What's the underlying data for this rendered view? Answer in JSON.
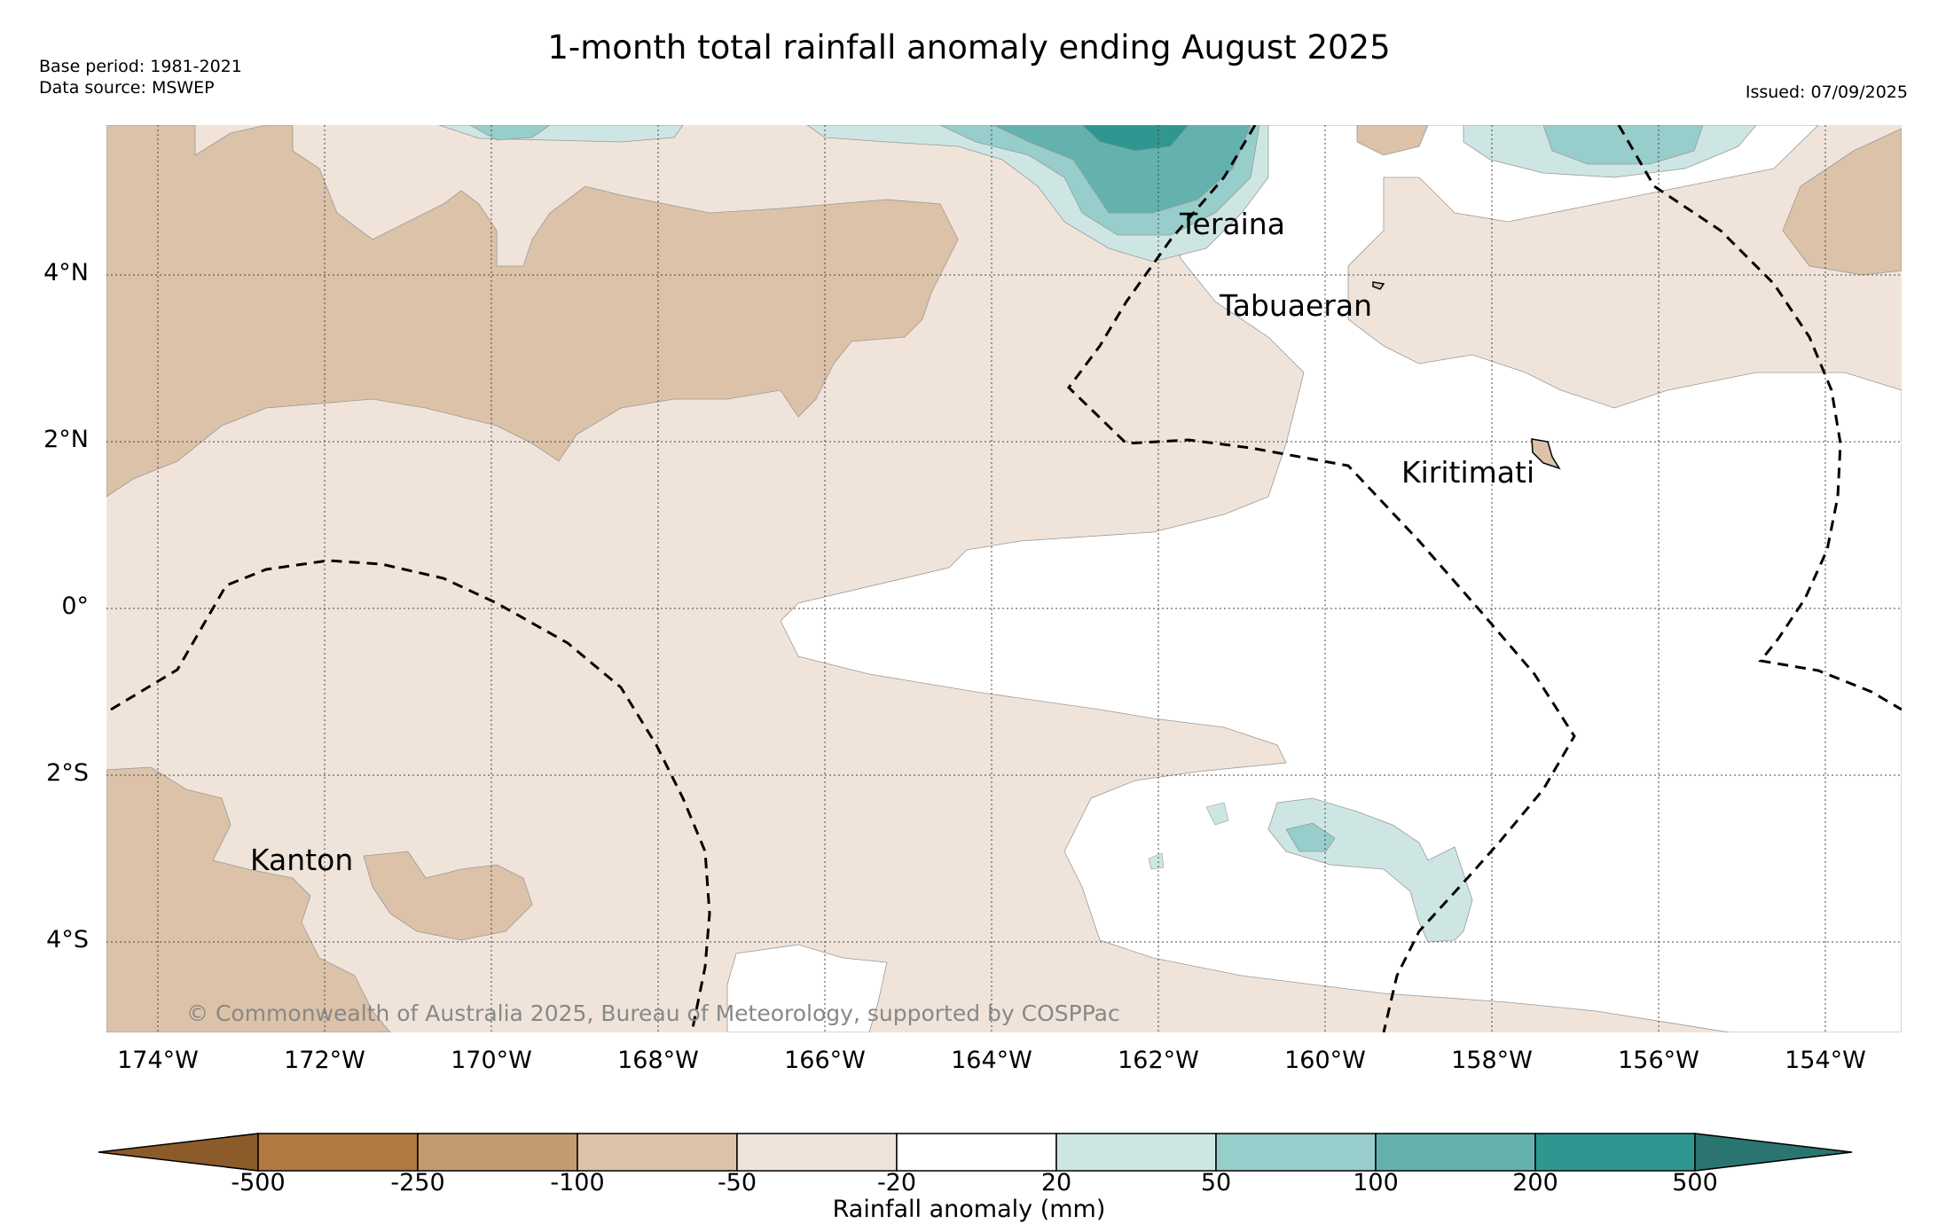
{
  "title": "1-month total rainfall anomaly ending August 2025",
  "meta": {
    "base_period": "Base period: 1981-2021",
    "data_source": "Data source: MSWEP",
    "issued": "Issued: 07/09/2025"
  },
  "axes": {
    "lat_labels": [
      "4°N",
      "2°N",
      "0°",
      "2°S",
      "4°S"
    ],
    "lon_labels": [
      "174°W",
      "172°W",
      "170°W",
      "168°W",
      "166°W",
      "164°W",
      "162°W",
      "160°W",
      "158°W",
      "156°W",
      "154°W"
    ]
  },
  "places": [
    {
      "name": "Teraina"
    },
    {
      "name": "Tabuaeran"
    },
    {
      "name": "Kiritimati"
    },
    {
      "name": "Kanton"
    }
  ],
  "copyright": "© Commonwealth of Australia 2025, Bureau of Meteorology, supported by COSPPac",
  "colorbar": {
    "title": "Rainfall anomaly (mm)",
    "ticks": [
      "-500",
      "-250",
      "-100",
      "-50",
      "-20",
      "20",
      "50",
      "100",
      "200",
      "500"
    ],
    "colors": [
      "#8c5b2a",
      "#b07a40",
      "#c49a70",
      "#dcc2a8",
      "#f0e4da",
      "#ffffff",
      "#cde6e4",
      "#97cdca",
      "#63b2ae",
      "#2f9790",
      "#2a7570"
    ]
  },
  "colors": {
    "dry_strong": "#dcc2a8",
    "dry_light": "#f0e4da",
    "wet_light": "#cde6e4",
    "wet_mid": "#97cdca",
    "wet_strong": "#63b2ae",
    "wet_very": "#2f9790"
  }
}
